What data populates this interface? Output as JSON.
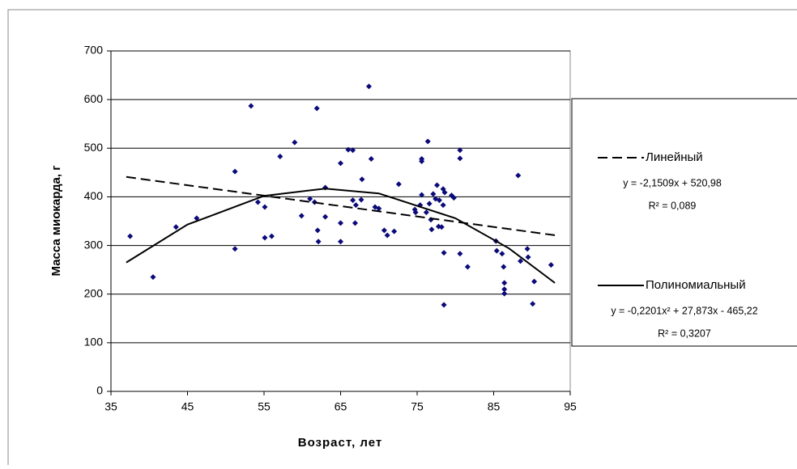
{
  "chart_data": {
    "type": "scatter",
    "x_label": "Возраст, лет",
    "y_label": "Масса миокарда, г",
    "xlim": [
      35,
      95
    ],
    "xticks": [
      35,
      45,
      55,
      65,
      75,
      85,
      95
    ],
    "ylim": [
      0,
      700
    ],
    "yticks": [
      0,
      100,
      200,
      300,
      400,
      500,
      600,
      700
    ],
    "grid": true,
    "series": [
      {
        "color": "#0a0a7a",
        "x": [
          37.5,
          40.5,
          43.5,
          46.2,
          51.2,
          51.2,
          53.3,
          54.2,
          55.1,
          55.1,
          56,
          57.1,
          59,
          59.9,
          61,
          61.6,
          61.9,
          62,
          62.1,
          63,
          63,
          65,
          65,
          65,
          66,
          66.6,
          66.6,
          66.9,
          67,
          67.7,
          67.8,
          68.7,
          69,
          69.5,
          70,
          70.7,
          71.1,
          72,
          72.6,
          74.7,
          74.8,
          75.4,
          75.6,
          75.6,
          75.6,
          76.2,
          76.4,
          76.6,
          76.8,
          76.9,
          77.1,
          77.4,
          77.6,
          77.8,
          77.9,
          78.2,
          78.4,
          78.5,
          78.5,
          78.4,
          78.6,
          79.5,
          79.8,
          80.6,
          80.6,
          80.6,
          81.6,
          85.3,
          85.4,
          86.1,
          86.3,
          86.4,
          86.4,
          86.4,
          88.2,
          88.5,
          89.4,
          89.5,
          90.1,
          90.3,
          92.5
        ],
        "values": [
          319,
          235,
          338,
          356,
          452,
          293,
          587,
          389,
          379,
          316,
          319,
          483,
          512,
          361,
          396,
          389,
          582,
          331,
          308,
          419,
          359,
          469,
          346,
          308,
          497,
          496,
          393,
          346,
          383,
          394,
          436,
          627,
          478,
          379,
          376,
          331,
          321,
          329,
          426,
          374,
          368,
          383,
          478,
          473,
          404,
          368,
          514,
          386,
          353,
          333,
          406,
          396,
          424,
          339,
          393,
          338,
          383,
          285,
          178,
          416,
          409,
          403,
          398,
          496,
          479,
          283,
          256,
          309,
          289,
          283,
          256,
          223,
          210,
          201,
          444,
          268,
          293,
          276,
          180,
          226,
          260
        ]
      }
    ],
    "trendlines": [
      {
        "name": "Линейный",
        "equation": "y = -2,1509x + 520,98",
        "r2": "R² = 0,089",
        "style": "dashed",
        "x": [
          37,
          93
        ],
        "values": [
          441,
          321
        ]
      },
      {
        "name": "Полиномиальный",
        "equation": "y = -0,2201x² + 27,873x - 465,22",
        "r2": "R² = 0,3207",
        "style": "solid",
        "x": [
          37,
          45,
          55,
          63,
          70,
          80,
          87,
          93
        ],
        "values": [
          265,
          343,
          402,
          417,
          407,
          356,
          294,
          223
        ]
      }
    ]
  }
}
